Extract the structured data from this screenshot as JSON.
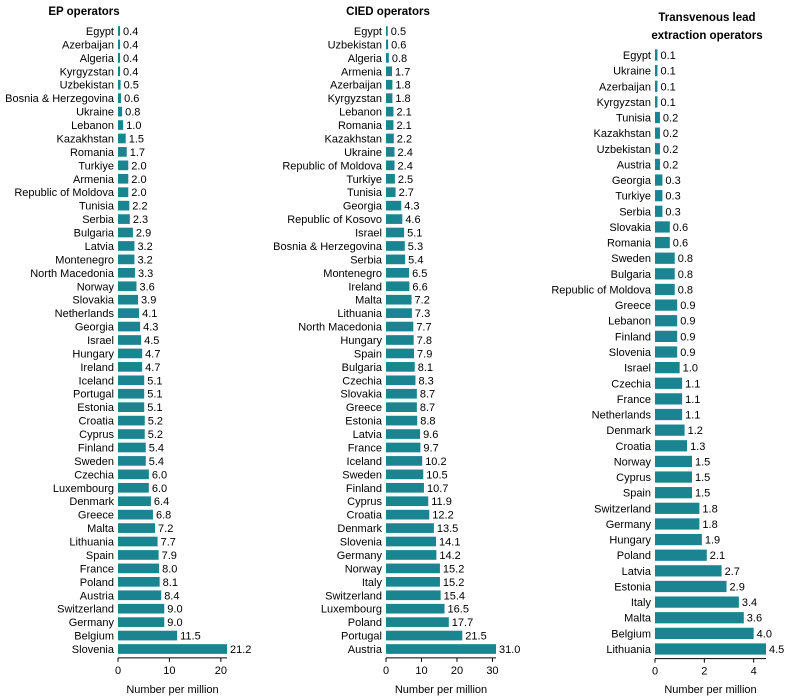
{
  "chart_data": [
    {
      "type": "bar",
      "orientation": "horizontal",
      "title": "EP operators",
      "xlabel": "Number per million",
      "xlim": [
        0,
        21.2
      ],
      "xticks": [
        0,
        10,
        20
      ],
      "categories": [
        "Egypt",
        "Azerbaijan",
        "Algeria",
        "Kyrgyzstan",
        "Uzbekistan",
        "Bosnia & Herzegovina",
        "Ukraine",
        "Lebanon",
        "Kazakhstan",
        "Romania",
        "Turkiye",
        "Armenia",
        "Republic of Moldova",
        "Tunisia",
        "Serbia",
        "Bulgaria",
        "Latvia",
        "Montenegro",
        "North Macedonia",
        "Norway",
        "Slovakia",
        "Netherlands",
        "Georgia",
        "Israel",
        "Hungary",
        "Ireland",
        "Iceland",
        "Portugal",
        "Estonia",
        "Croatia",
        "Cyprus",
        "Finland",
        "Sweden",
        "Czechia",
        "Luxembourg",
        "Denmark",
        "Greece",
        "Malta",
        "Lithuania",
        "Spain",
        "France",
        "Poland",
        "Austria",
        "Switzerland",
        "Germany",
        "Belgium",
        "Slovenia"
      ],
      "values": [
        0.4,
        0.4,
        0.4,
        0.4,
        0.5,
        0.6,
        0.8,
        1.0,
        1.5,
        1.7,
        2.0,
        2.0,
        2.0,
        2.2,
        2.3,
        2.9,
        3.2,
        3.2,
        3.3,
        3.6,
        3.9,
        4.1,
        4.3,
        4.5,
        4.7,
        4.7,
        5.1,
        5.1,
        5.1,
        5.2,
        5.2,
        5.4,
        5.4,
        6.0,
        6.0,
        6.4,
        6.8,
        7.2,
        7.7,
        7.9,
        8.0,
        8.1,
        8.4,
        9.0,
        9.0,
        11.5,
        21.2
      ],
      "labels": [
        "0.4",
        "0.4",
        "0.4",
        "0.4",
        "0.5",
        "0.6",
        "0.8",
        "1.0",
        "1.5",
        "1.7",
        "2.0",
        "2.0",
        "2.0",
        "2.2",
        "2.3",
        "2.9",
        "3.2",
        "3.2",
        "3.3",
        "3.6",
        "3.9",
        "4.1",
        "4.3",
        "4.5",
        "4.7",
        "4.7",
        "5.1",
        "5.1",
        "5.1",
        "5.2",
        "5.2",
        "5.4",
        "5.4",
        "6.0",
        "6.0",
        "6.4",
        "6.8",
        "7.2",
        "7.7",
        "7.9",
        "8.0",
        "8.1",
        "8.4",
        "9.0",
        "9.0",
        "11.5",
        "21.2"
      ],
      "color": "#1a8590"
    },
    {
      "type": "bar",
      "orientation": "horizontal",
      "title": "CIED operators",
      "xlabel": "Number per million",
      "xlim": [
        0,
        31.0
      ],
      "xticks": [
        0,
        10,
        20,
        30
      ],
      "categories": [
        "Egypt",
        "Uzbekistan",
        "Algeria",
        "Armenia",
        "Azerbaijan",
        "Kyrgyzstan",
        "Lebanon",
        "Romania",
        "Kazakhstan",
        "Ukraine",
        "Republic of Moldova",
        "Turkiye",
        "Tunisia",
        "Georgia",
        "Republic of Kosovo",
        "Israel",
        "Bosnia & Herzegovina",
        "Serbia",
        "Montenegro",
        "Ireland",
        "Malta",
        "Lithuania",
        "North Macedonia",
        "Hungary",
        "Spain",
        "Bulgaria",
        "Czechia",
        "Slovakia",
        "Greece",
        "Estonia",
        "Latvia",
        "France",
        "Iceland",
        "Sweden",
        "Finland",
        "Cyprus",
        "Croatia",
        "Denmark",
        "Slovenia",
        "Germany",
        "Norway",
        "Italy",
        "Switzerland",
        "Luxembourg",
        "Poland",
        "Portugal",
        "Austria"
      ],
      "values": [
        0.5,
        0.6,
        0.8,
        1.7,
        1.8,
        1.8,
        2.1,
        2.1,
        2.2,
        2.4,
        2.4,
        2.5,
        2.7,
        4.3,
        4.6,
        5.1,
        5.3,
        5.4,
        6.5,
        6.6,
        7.2,
        7.3,
        7.7,
        7.8,
        7.9,
        8.1,
        8.3,
        8.7,
        8.7,
        8.8,
        9.6,
        9.7,
        10.2,
        10.5,
        10.7,
        11.9,
        12.2,
        13.5,
        14.1,
        14.2,
        15.2,
        15.2,
        15.4,
        16.5,
        17.7,
        21.5,
        31.0
      ],
      "labels": [
        "0.5",
        "0.6",
        "0.8",
        "1.7",
        "1.8",
        "1.8",
        "2.1",
        "2.1",
        "2.2",
        "2.4",
        "2.4",
        "2.5",
        "2.7",
        "4.3",
        "4.6",
        "5.1",
        "5.3",
        "5.4",
        "6.5",
        "6.6",
        "7.2",
        "7.3",
        "7.7",
        "7.8",
        "7.9",
        "8.1",
        "8.3",
        "8.7",
        "8.7",
        "8.8",
        "9.6",
        "9.7",
        "10.2",
        "10.5",
        "10.7",
        "11.9",
        "12.2",
        "13.5",
        "14.1",
        "14.2",
        "15.2",
        "15.2",
        "15.4",
        "16.5",
        "17.7",
        "21.5",
        "31.0"
      ],
      "color": "#1a8590"
    },
    {
      "type": "bar",
      "orientation": "horizontal",
      "title": "Transvenous lead extraction operators",
      "title_lines": [
        "Transvenous lead",
        "extraction operators"
      ],
      "xlabel": "Number per million",
      "xlim": [
        0,
        4.5
      ],
      "xticks": [
        0,
        2,
        4
      ],
      "categories": [
        "Egypt",
        "Ukraine",
        "Azerbaijan",
        "Kyrgyzstan",
        "Tunisia",
        "Kazakhstan",
        "Uzbekistan",
        "Austria",
        "Georgia",
        "Turkiye",
        "Serbia",
        "Slovakia",
        "Romania",
        "Sweden",
        "Bulgaria",
        "Republic of Moldova",
        "Greece",
        "Lebanon",
        "Finland",
        "Slovenia",
        "Israel",
        "Czechia",
        "France",
        "Netherlands",
        "Denmark",
        "Croatia",
        "Norway",
        "Cyprus",
        "Spain",
        "Switzerland",
        "Germany",
        "Hungary",
        "Poland",
        "Latvia",
        "Estonia",
        "Italy",
        "Malta",
        "Belgium",
        "Lithuania"
      ],
      "values": [
        0.1,
        0.1,
        0.1,
        0.1,
        0.2,
        0.2,
        0.2,
        0.2,
        0.3,
        0.3,
        0.3,
        0.6,
        0.6,
        0.8,
        0.8,
        0.8,
        0.9,
        0.9,
        0.9,
        0.9,
        1.0,
        1.1,
        1.1,
        1.1,
        1.2,
        1.3,
        1.5,
        1.5,
        1.5,
        1.8,
        1.8,
        1.9,
        2.1,
        2.7,
        2.9,
        3.4,
        3.6,
        4.0,
        4.5
      ],
      "labels": [
        "0.1",
        "0.1",
        "0.1",
        "0.1",
        "0.2",
        "0.2",
        "0.2",
        "0.2",
        "0.3",
        "0.3",
        "0.3",
        "0.6",
        "0.6",
        "0.8",
        "0.8",
        "0.8",
        "0.9",
        "0.9",
        "0.9",
        "0.9",
        "1.0",
        "1.1",
        "1.1",
        "1.1",
        "1.2",
        "1.3",
        "1.5",
        "1.5",
        "1.5",
        "1.8",
        "1.8",
        "1.9",
        "2.1",
        "2.7",
        "2.9",
        "3.4",
        "3.6",
        "4.0",
        "4.5"
      ],
      "color": "#1a8590"
    }
  ]
}
